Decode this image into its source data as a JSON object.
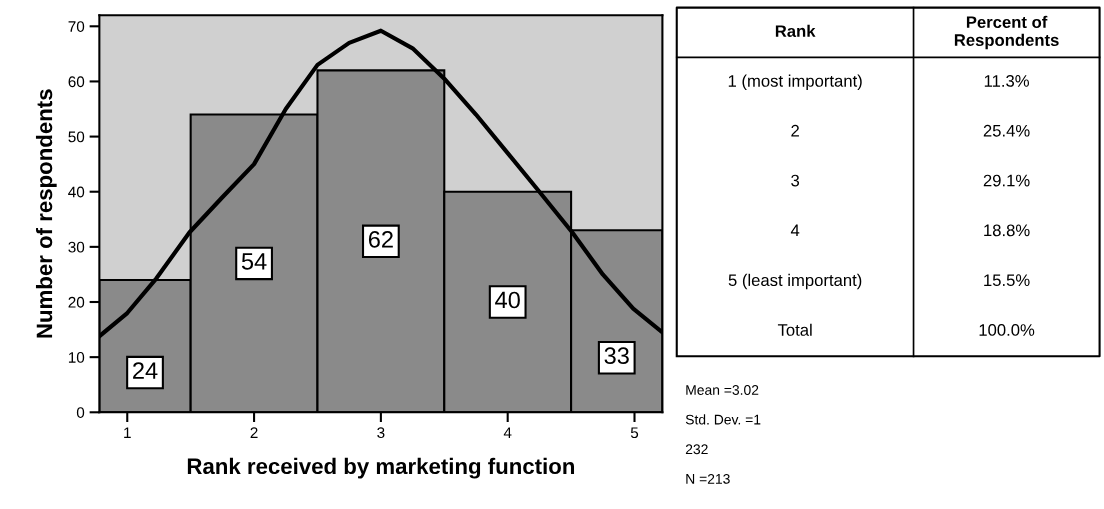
{
  "chart_data": [
    {
      "type": "histogram",
      "xlabel": "Rank received by marketing function",
      "ylabel": "Number of respondents",
      "bins": [
        0.78,
        1.5,
        2.5,
        3.5,
        4.5,
        5.22
      ],
      "values": [
        24,
        54,
        62,
        40,
        33
      ],
      "color": "#8a8a8a",
      "value_labels": [
        "24",
        "54",
        "62",
        "40",
        "33"
      ],
      "series": [
        {
          "type": "line",
          "color": "#000000",
          "x": [
            0.78,
            1.0,
            1.23,
            1.49,
            1.75,
            2.0,
            2.25,
            2.5,
            2.75,
            3.0,
            3.25,
            3.5,
            3.75,
            4.0,
            4.25,
            4.51,
            4.75,
            4.99,
            5.22
          ],
          "values": [
            13.8,
            18,
            24.3,
            32.6,
            39,
            45,
            55,
            63,
            67,
            69.2,
            66,
            60.5,
            54,
            47,
            40,
            32.6,
            25,
            18.8,
            14.5
          ]
        }
      ],
      "xlim": [
        0.78,
        5.22
      ],
      "ylim": [
        0,
        72
      ],
      "xticks": [
        1,
        2,
        3,
        4,
        5
      ],
      "yticks": [
        0,
        10,
        20,
        30,
        40,
        50,
        60,
        70
      ]
    },
    {
      "type": "other",
      "categories": [
        "1 (most important)",
        "2",
        "3",
        "4",
        "5 (least important)",
        "Total"
      ],
      "value_labels": [
        "11.3%",
        "25.4%",
        "29.1%",
        "18.8%",
        "15.5%",
        "100.0%"
      ],
      "annotations": [
        "Rank",
        "Percent of\nRespondents",
        "Mean =3.02",
        "Std. Dev. =1",
        "232",
        "N =213"
      ]
    }
  ]
}
